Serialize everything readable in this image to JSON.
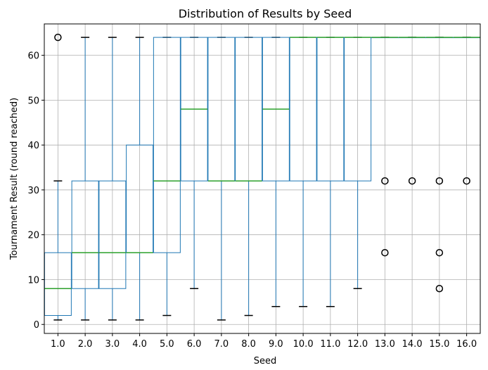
{
  "chart_data": {
    "type": "box",
    "title": "Distribution of Results by Seed",
    "xlabel": "Seed",
    "ylabel": "Tournament Result (round reached)",
    "categories": [
      "1.0",
      "2.0",
      "3.0",
      "4.0",
      "5.0",
      "6.0",
      "7.0",
      "8.0",
      "9.0",
      "10.0",
      "11.0",
      "12.0",
      "13.0",
      "14.0",
      "15.0",
      "16.0"
    ],
    "ylim": [
      -2,
      67
    ],
    "yticks": [
      0,
      10,
      20,
      30,
      40,
      50,
      60
    ],
    "grid": true,
    "colors": {
      "box": "#1f77b4",
      "median": "#2ca02c",
      "outlier": "#000000",
      "grid": "#b0b0b0"
    },
    "boxes": [
      {
        "seed": "1.0",
        "whisker_low": 1,
        "q1": 2,
        "median": 8,
        "q3": 16,
        "whisker_high": 32,
        "outliers": [
          64
        ]
      },
      {
        "seed": "2.0",
        "whisker_low": 1,
        "q1": 8,
        "median": 16,
        "q3": 32,
        "whisker_high": 64,
        "outliers": []
      },
      {
        "seed": "3.0",
        "whisker_low": 1,
        "q1": 8,
        "median": 16,
        "q3": 32,
        "whisker_high": 64,
        "outliers": []
      },
      {
        "seed": "4.0",
        "whisker_low": 1,
        "q1": 16,
        "median": 16,
        "q3": 40,
        "whisker_high": 64,
        "outliers": []
      },
      {
        "seed": "5.0",
        "whisker_low": 2,
        "q1": 16,
        "median": 32,
        "q3": 64,
        "whisker_high": 64,
        "outliers": []
      },
      {
        "seed": "6.0",
        "whisker_low": 8,
        "q1": 32,
        "median": 48,
        "q3": 64,
        "whisker_high": 64,
        "outliers": []
      },
      {
        "seed": "7.0",
        "whisker_low": 1,
        "q1": 32,
        "median": 32,
        "q3": 64,
        "whisker_high": 64,
        "outliers": []
      },
      {
        "seed": "8.0",
        "whisker_low": 2,
        "q1": 32,
        "median": 32,
        "q3": 64,
        "whisker_high": 64,
        "outliers": []
      },
      {
        "seed": "9.0",
        "whisker_low": 4,
        "q1": 32,
        "median": 48,
        "q3": 64,
        "whisker_high": 64,
        "outliers": []
      },
      {
        "seed": "10.0",
        "whisker_low": 4,
        "q1": 32,
        "median": 64,
        "q3": 64,
        "whisker_high": 64,
        "outliers": []
      },
      {
        "seed": "11.0",
        "whisker_low": 4,
        "q1": 32,
        "median": 64,
        "q3": 64,
        "whisker_high": 64,
        "outliers": []
      },
      {
        "seed": "12.0",
        "whisker_low": 8,
        "q1": 32,
        "median": 64,
        "q3": 64,
        "whisker_high": 64,
        "outliers": []
      },
      {
        "seed": "13.0",
        "whisker_low": 64,
        "q1": 64,
        "median": 64,
        "q3": 64,
        "whisker_high": 64,
        "outliers": [
          32,
          16
        ]
      },
      {
        "seed": "14.0",
        "whisker_low": 64,
        "q1": 64,
        "median": 64,
        "q3": 64,
        "whisker_high": 64,
        "outliers": [
          32
        ]
      },
      {
        "seed": "15.0",
        "whisker_low": 64,
        "q1": 64,
        "median": 64,
        "q3": 64,
        "whisker_high": 64,
        "outliers": [
          32,
          16,
          8
        ]
      },
      {
        "seed": "16.0",
        "whisker_low": 64,
        "q1": 64,
        "median": 64,
        "q3": 64,
        "whisker_high": 64,
        "outliers": [
          32
        ]
      }
    ]
  }
}
